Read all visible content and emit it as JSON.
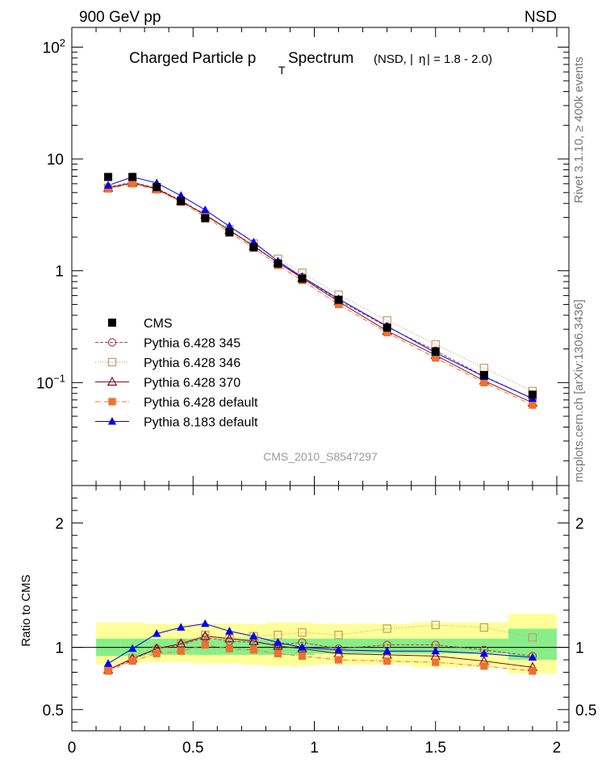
{
  "header": {
    "left": "900 GeV pp",
    "right": "NSD",
    "side_top": "Rivet 3.1.10, ≥ 400k events",
    "side_bottom": "mcplots.cern.ch [arXiv:1306.3436]"
  },
  "title": {
    "main_a": "Charged Particle p",
    "main_sub": "T",
    "main_b": " Spectrum",
    "qualifier_a": "(NSD, |",
    "qualifier_eta": "η",
    "qualifier_b": "| = 1.8 - 2.0)"
  },
  "analysis_id": "CMS_2010_S8547297",
  "colors": {
    "cms": "#000000",
    "p345": "#b0424a",
    "p346": "#c39a6b",
    "p370": "#7a1020",
    "pdef": "#f07030",
    "p8": "#0000ee",
    "band_inner": "#88ee88",
    "band_outer": "#ffff99"
  },
  "chart_data": {
    "type": "scatter",
    "xlabel": "",
    "xlim": [
      0,
      2.05
    ],
    "x_ticks": [
      "0",
      "0.5",
      "1",
      "1.5",
      "2"
    ],
    "main_panel": {
      "yscale": "log",
      "ylim": [
        0.012,
        150
      ],
      "y_ticks": [
        {
          "value": 100,
          "base": "10",
          "exp": "2"
        },
        {
          "value": 10,
          "base": "10",
          "exp": ""
        },
        {
          "value": 1,
          "base": "1",
          "exp": ""
        },
        {
          "value": 0.1,
          "base": "10",
          "exp": "−1"
        }
      ]
    },
    "ratio_panel": {
      "ylabel": "Ratio to CMS",
      "ylim": [
        0.33,
        2.3
      ],
      "y_ticks": [
        "0.5",
        "1",
        "2"
      ],
      "band_x_edges": [
        0.1,
        0.2,
        0.3,
        0.4,
        0.5,
        0.6,
        0.7,
        0.8,
        0.9,
        1.0,
        1.2,
        1.4,
        1.6,
        1.8,
        2.0
      ],
      "band_inner": [
        [
          0.93,
          1.07
        ],
        [
          0.93,
          1.07
        ],
        [
          0.94,
          1.07
        ],
        [
          0.94,
          1.07
        ],
        [
          0.94,
          1.07
        ],
        [
          0.94,
          1.07
        ],
        [
          0.94,
          1.07
        ],
        [
          0.94,
          1.07
        ],
        [
          0.94,
          1.07
        ],
        [
          0.95,
          1.07
        ],
        [
          0.95,
          1.07
        ],
        [
          0.95,
          1.07
        ],
        [
          0.95,
          1.07
        ],
        [
          0.9,
          1.15
        ]
      ],
      "band_outer": [
        [
          0.86,
          1.2
        ],
        [
          0.88,
          1.2
        ],
        [
          0.88,
          1.19
        ],
        [
          0.88,
          1.19
        ],
        [
          0.87,
          1.19
        ],
        [
          0.87,
          1.19
        ],
        [
          0.86,
          1.19
        ],
        [
          0.85,
          1.2
        ],
        [
          0.85,
          1.2
        ],
        [
          0.86,
          1.19
        ],
        [
          0.86,
          1.19
        ],
        [
          0.84,
          1.2
        ],
        [
          0.84,
          1.2
        ],
        [
          0.79,
          1.27
        ]
      ]
    },
    "x": [
      0.15,
      0.25,
      0.35,
      0.45,
      0.55,
      0.65,
      0.75,
      0.85,
      0.95,
      1.1,
      1.3,
      1.5,
      1.7,
      1.9
    ],
    "cms": [
      6.9,
      6.9,
      5.6,
      4.2,
      2.95,
      2.2,
      1.62,
      1.16,
      0.85,
      0.55,
      0.31,
      0.19,
      0.117,
      0.078
    ],
    "series": [
      {
        "name": "Pythia 6.428 345",
        "key": "p345",
        "marker": "open-circle",
        "dash": "4,2",
        "values": [
          5.6,
          6.2,
          5.5,
          4.25,
          3.2,
          2.3,
          1.68,
          1.18,
          0.88,
          0.545,
          0.315,
          0.193,
          0.114,
          0.072
        ],
        "ratio": [
          0.82,
          0.9,
          0.99,
          1.02,
          1.08,
          1.05,
          1.04,
          1.02,
          1.04,
          0.99,
          1.02,
          1.02,
          0.98,
          0.93
        ]
      },
      {
        "name": "Pythia 6.428 346",
        "key": "p346",
        "marker": "open-square",
        "dash": "1,2",
        "values": [
          5.5,
          6.25,
          5.4,
          4.25,
          3.2,
          2.35,
          1.75,
          1.28,
          0.96,
          0.61,
          0.36,
          0.22,
          0.135,
          0.084
        ],
        "ratio": [
          0.82,
          0.91,
          0.98,
          1.03,
          1.1,
          1.07,
          1.09,
          1.1,
          1.12,
          1.1,
          1.15,
          1.18,
          1.16,
          1.08
        ]
      },
      {
        "name": "Pythia 6.428 370",
        "key": "p370",
        "marker": "open-triangle",
        "dash": "",
        "values": [
          5.5,
          6.1,
          5.4,
          4.2,
          3.15,
          2.3,
          1.66,
          1.18,
          0.86,
          0.53,
          0.29,
          0.176,
          0.104,
          0.066
        ],
        "ratio": [
          0.82,
          0.91,
          0.99,
          1.03,
          1.09,
          1.07,
          1.05,
          1.01,
          0.99,
          0.95,
          0.94,
          0.93,
          0.89,
          0.84
        ]
      },
      {
        "name": "Pythia 6.428 default",
        "key": "pdef",
        "marker": "filled-square",
        "dash": "6,2,1,2",
        "values": [
          5.4,
          6.0,
          5.3,
          4.1,
          3.05,
          2.2,
          1.6,
          1.12,
          0.82,
          0.5,
          0.28,
          0.166,
          0.1,
          0.063
        ],
        "ratio": [
          0.81,
          0.89,
          0.95,
          0.97,
          1.02,
          0.99,
          0.98,
          0.95,
          0.93,
          0.9,
          0.89,
          0.88,
          0.85,
          0.81
        ]
      },
      {
        "name": "Pythia 8.183 default",
        "key": "p8",
        "marker": "filled-triangle",
        "dash": "",
        "values": [
          5.8,
          6.9,
          6.1,
          4.7,
          3.5,
          2.5,
          1.8,
          1.22,
          0.88,
          0.56,
          0.32,
          0.185,
          0.113,
          0.072
        ],
        "ratio": [
          0.87,
          0.99,
          1.11,
          1.16,
          1.19,
          1.13,
          1.09,
          1.04,
          1.0,
          0.98,
          0.97,
          0.97,
          0.95,
          0.92
        ]
      }
    ],
    "legend": {
      "position": "middle-left",
      "entries": [
        "CMS",
        "Pythia 6.428 345",
        "Pythia 6.428 346",
        "Pythia 6.428 370",
        "Pythia 6.428 default",
        "Pythia 8.183 default"
      ]
    }
  }
}
